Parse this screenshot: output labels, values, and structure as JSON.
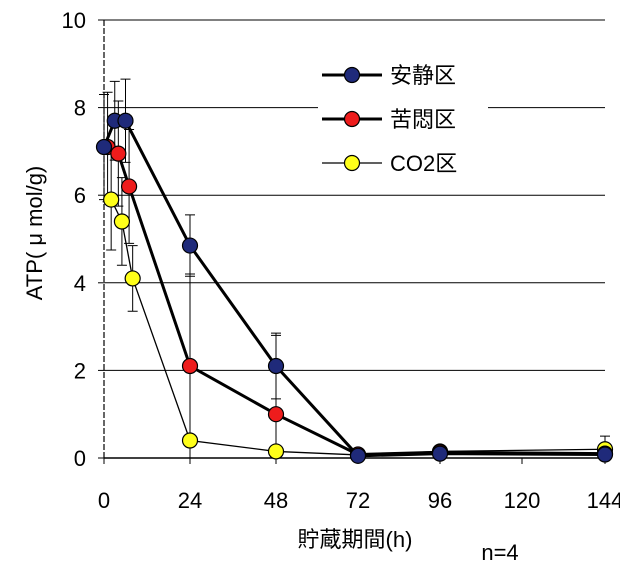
{
  "chart_data": {
    "type": "line",
    "xlabel": "貯蔵期間(h)",
    "ylabel": "ATP( μ mol/g)",
    "note": "n=4",
    "x_ticks": [
      "0",
      "24",
      "48",
      "72",
      "96",
      "120",
      "144"
    ],
    "y_ticks": [
      "0",
      "2",
      "4",
      "6",
      "8",
      "10"
    ],
    "ylim": [
      0,
      10
    ],
    "grid": "horizontal",
    "legend_position": "top-right",
    "series": [
      {
        "name": "安静区",
        "color": "#1f2a7a",
        "line_style": "thick",
        "points": [
          {
            "x": 0,
            "y": 7.1,
            "err": 1.2
          },
          {
            "x": 3,
            "y": 7.7,
            "err": 0.9
          },
          {
            "x": 6,
            "y": 7.7,
            "err": 0.95
          },
          {
            "x": 24,
            "y": 4.85,
            "err": 0.7
          },
          {
            "x": 48,
            "y": 2.1,
            "err": 0.75
          },
          {
            "x": 72,
            "y": 0.05,
            "err": 0.05
          },
          {
            "x": 96,
            "y": 0.1,
            "err": 0.05
          },
          {
            "x": 144,
            "y": 0.08,
            "err": 0.05
          }
        ]
      },
      {
        "name": "苦悶区",
        "color": "#ee1c1c",
        "line_style": "thick",
        "points": [
          {
            "x": 1,
            "y": 7.1,
            "err": 1.25
          },
          {
            "x": 4,
            "y": 6.95,
            "err": 1.2
          },
          {
            "x": 7,
            "y": 6.2,
            "err": 1.3
          },
          {
            "x": 24,
            "y": 2.1,
            "err": 2.1
          },
          {
            "x": 48,
            "y": 1.0,
            "err": 1.8
          },
          {
            "x": 72,
            "y": 0.08,
            "err": 0.05
          },
          {
            "x": 96,
            "y": 0.13,
            "err": 0.05
          },
          {
            "x": 144,
            "y": 0.1,
            "err": 0.05
          }
        ]
      },
      {
        "name": "CO2区",
        "color": "#ffff1a",
        "line_style": "thin",
        "points": [
          {
            "x": 2,
            "y": 5.9,
            "err": 1.15
          },
          {
            "x": 5,
            "y": 5.4,
            "err": 1.0
          },
          {
            "x": 8,
            "y": 4.1,
            "err": 0.75
          },
          {
            "x": 24,
            "y": 0.4,
            "err": 0.1
          },
          {
            "x": 48,
            "y": 0.15,
            "err": 0.05
          },
          {
            "x": 72,
            "y": 0.07,
            "err": 0.05
          },
          {
            "x": 96,
            "y": 0.15,
            "err": 0.05
          },
          {
            "x": 144,
            "y": 0.2,
            "err": 0.3
          }
        ]
      }
    ]
  }
}
